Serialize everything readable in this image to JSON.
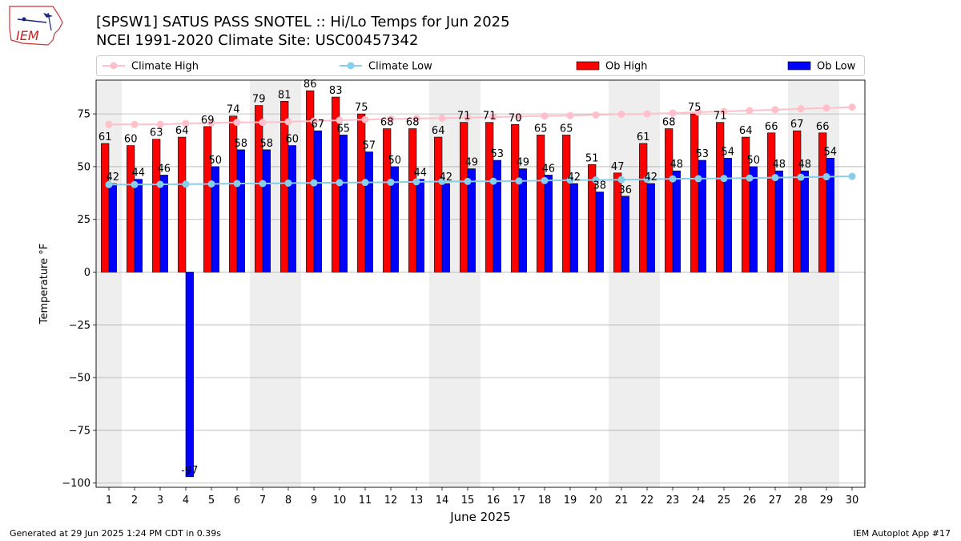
{
  "header": {
    "title_line1": "[SPSW1] SATUS PASS SNOTEL :: Hi/Lo Temps for Jun 2025",
    "title_line2": "NCEI 1991-2020 Climate Site: USC00457342",
    "logo_text": "IEM"
  },
  "footer": {
    "generated": "Generated at 29 Jun 2025 1:24 PM CDT in 0.39s",
    "app": "IEM Autoplot App #17"
  },
  "colors": {
    "ob_high": "#ff0000",
    "ob_low": "#0000ff",
    "climate_high": "#ffc0cb",
    "climate_low": "#87ceeb",
    "weekend_shade": "#eeeeee",
    "grid": "#b0b0b0"
  },
  "chart_data": {
    "type": "bar",
    "xlabel": "June 2025",
    "ylabel": "Temperature °F",
    "ylim": [
      -102,
      91
    ],
    "yticks": [
      -100,
      -75,
      -50,
      -25,
      0,
      25,
      50,
      75
    ],
    "grid": true,
    "legend_position": "top",
    "x": [
      1,
      2,
      3,
      4,
      5,
      6,
      7,
      8,
      9,
      10,
      11,
      12,
      13,
      14,
      15,
      16,
      17,
      18,
      19,
      20,
      21,
      22,
      23,
      24,
      25,
      26,
      27,
      28,
      29,
      30
    ],
    "weekend_spans": [
      [
        1,
        1
      ],
      [
        7,
        8
      ],
      [
        14,
        15
      ],
      [
        21,
        22
      ],
      [
        28,
        29
      ]
    ],
    "series": [
      {
        "name": "Ob High",
        "kind": "bar",
        "values": [
          61,
          60,
          63,
          64,
          69,
          74,
          79,
          81,
          86,
          83,
          75,
          68,
          68,
          64,
          71,
          71,
          70,
          65,
          65,
          51,
          47,
          61,
          68,
          75,
          71,
          64,
          66,
          67,
          66,
          null
        ]
      },
      {
        "name": "Ob Low",
        "kind": "bar",
        "values": [
          42,
          44,
          46,
          -97,
          50,
          58,
          58,
          60,
          67,
          65,
          57,
          50,
          44,
          42,
          49,
          53,
          49,
          46,
          42,
          38,
          36,
          42,
          48,
          53,
          54,
          50,
          48,
          48,
          54,
          null
        ]
      },
      {
        "name": "Climate High",
        "kind": "line",
        "values": [
          70,
          70,
          70,
          70.5,
          70.7,
          71,
          71,
          71.3,
          71.6,
          72,
          72.3,
          72.6,
          72.8,
          73,
          73.2,
          73.5,
          73.8,
          74,
          74.2,
          74.5,
          74.8,
          75,
          75.4,
          75.8,
          76.2,
          76.6,
          77,
          77.4,
          77.8,
          78.2
        ]
      },
      {
        "name": "Climate Low",
        "kind": "line",
        "values": [
          41.5,
          41.5,
          41.6,
          41.7,
          41.8,
          42,
          42,
          42.2,
          42.3,
          42.4,
          42.5,
          42.6,
          42.8,
          43,
          43,
          43.1,
          43.2,
          43.4,
          43.6,
          43.7,
          43.8,
          44,
          44.2,
          44.3,
          44.4,
          44.6,
          44.8,
          45,
          45.2,
          45.4
        ]
      }
    ],
    "legend": [
      "Climate High",
      "Climate Low",
      "Ob High",
      "Ob Low"
    ]
  }
}
